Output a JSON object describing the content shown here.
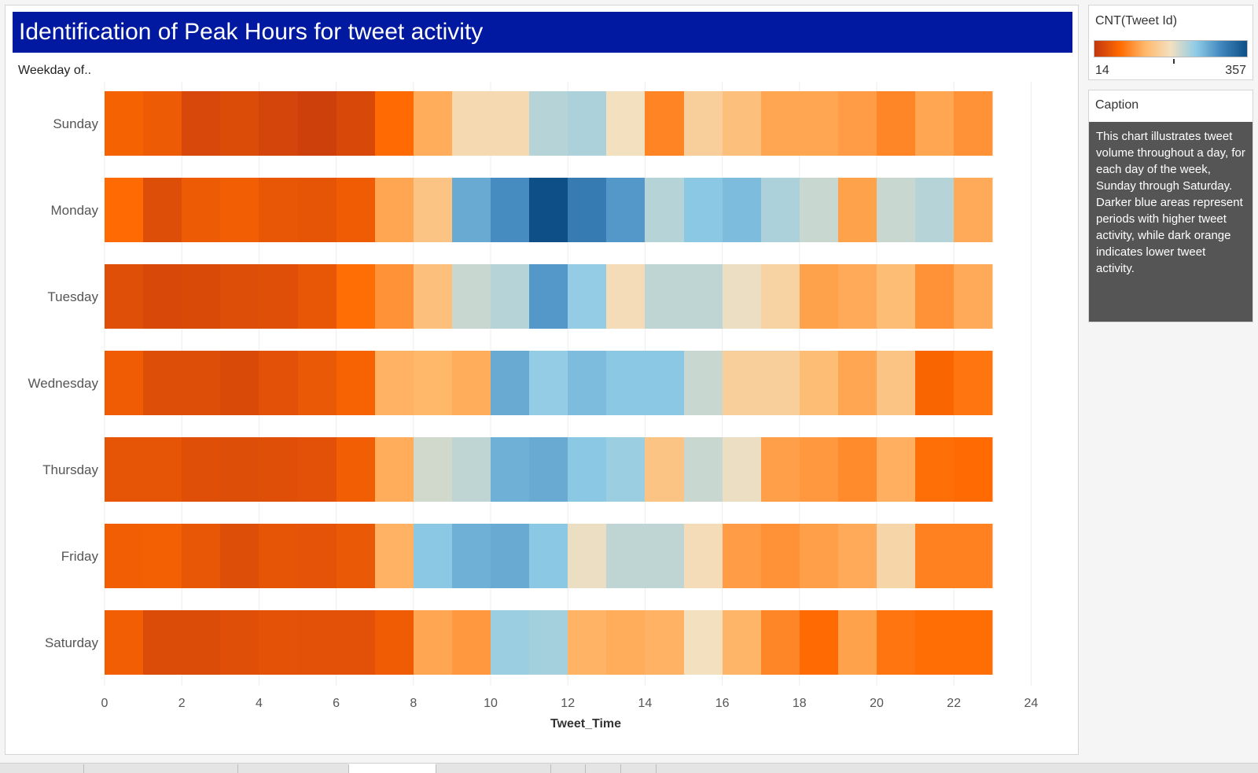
{
  "title": "Identification of Peak Hours for tweet activity",
  "row_header": "Weekday of..",
  "legend": {
    "title": "CNT(Tweet Id)",
    "min_label": "14",
    "max_label": "357",
    "colors": [
      "#c1360f",
      "#ff6a00",
      "#ffb86b",
      "#f3e0c0",
      "#8ecbe6",
      "#3f86bd",
      "#0d4f86"
    ]
  },
  "caption": {
    "header": "Caption",
    "text": "This chart illustrates tweet volume throughout a day, for each day of the week, Sunday through Saturday. Darker blue areas represent periods with higher tweet activity, while dark orange indicates lower tweet activity."
  },
  "chart_data": {
    "type": "heatmap",
    "xlabel": "Tweet_Time",
    "x_ticks": [
      "0",
      "2",
      "4",
      "6",
      "8",
      "10",
      "12",
      "14",
      "16",
      "18",
      "20",
      "22",
      "24"
    ],
    "xlim": [
      0,
      24
    ],
    "x": [
      0,
      1,
      2,
      3,
      4,
      5,
      6,
      7,
      8,
      9,
      10,
      11,
      12,
      13,
      14,
      15,
      16,
      17,
      18,
      19,
      20,
      21,
      22
    ],
    "rows": [
      "Sunday",
      "Monday",
      "Tuesday",
      "Wednesday",
      "Thursday",
      "Friday",
      "Saturday"
    ],
    "value_range": [
      14,
      357
    ],
    "values": [
      [
        62,
        55,
        34,
        38,
        31,
        25,
        35,
        72,
        120,
        175,
        175,
        220,
        225,
        185,
        90,
        160,
        140,
        115,
        115,
        108,
        92,
        115,
        100
      ],
      [
        72,
        40,
        55,
        58,
        50,
        48,
        56,
        115,
        145,
        270,
        295,
        357,
        310,
        285,
        220,
        245,
        255,
        225,
        210,
        112,
        210,
        220,
        118
      ],
      [
        42,
        35,
        36,
        40,
        42,
        50,
        74,
        100,
        140,
        210,
        220,
        285,
        240,
        180,
        215,
        215,
        190,
        165,
        112,
        118,
        135,
        100,
        118
      ],
      [
        56,
        40,
        40,
        36,
        44,
        52,
        64,
        124,
        128,
        120,
        270,
        240,
        255,
        245,
        245,
        210,
        160,
        160,
        135,
        115,
        145,
        66,
        80
      ],
      [
        48,
        48,
        42,
        40,
        42,
        44,
        58,
        120,
        205,
        215,
        265,
        270,
        245,
        235,
        145,
        210,
        190,
        110,
        105,
        95,
        122,
        75,
        72
      ],
      [
        58,
        60,
        50,
        40,
        48,
        46,
        52,
        124,
        245,
        265,
        270,
        245,
        190,
        215,
        215,
        180,
        108,
        100,
        110,
        118,
        170,
        88,
        88
      ],
      [
        58,
        38,
        38,
        42,
        45,
        44,
        44,
        56,
        115,
        105,
        235,
        230,
        125,
        120,
        124,
        185,
        126,
        92,
        72,
        112,
        80,
        74,
        74
      ]
    ]
  }
}
